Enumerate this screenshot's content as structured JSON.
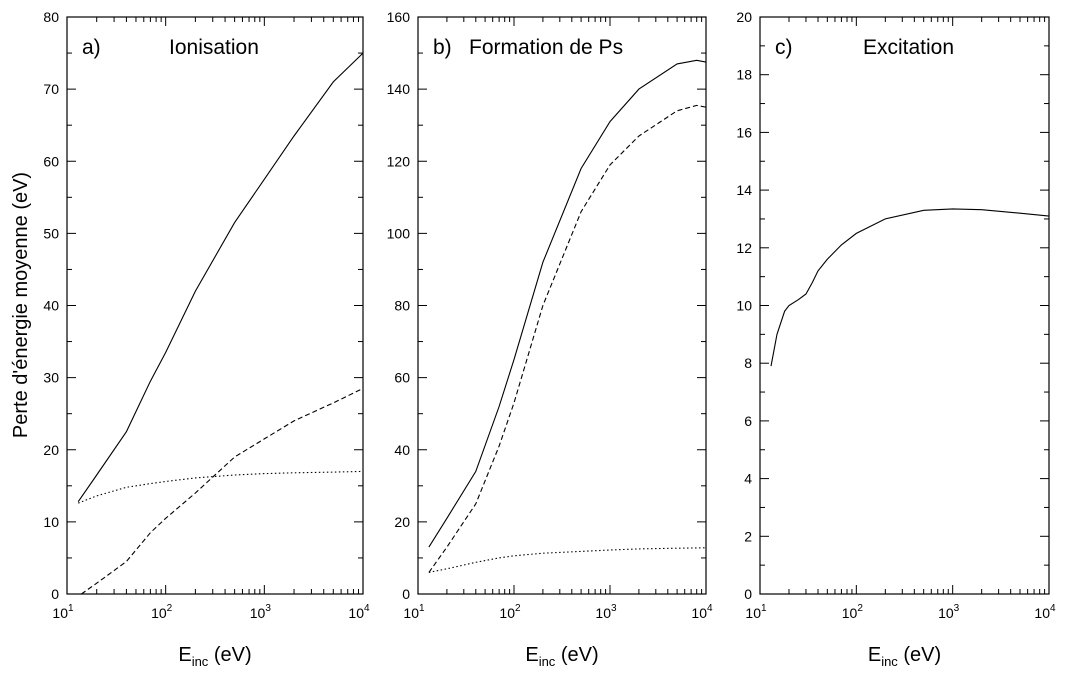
{
  "figure": {
    "ylabel": "Perte d'énergie moyenne (eV)"
  },
  "chart_data": [
    {
      "type": "line",
      "panel_label": "a)",
      "title": "Ionisation",
      "xlabel_main": "E",
      "xlabel_sub": "inc",
      "xlabel_unit": " (eV)",
      "xscale": "log",
      "xlim": [
        10,
        10000
      ],
      "ylim": [
        0,
        80
      ],
      "x_tick_labels": [
        {
          "base": "10",
          "exp": "1"
        },
        {
          "base": "10",
          "exp": "2"
        },
        {
          "base": "10",
          "exp": "3"
        },
        {
          "base": "10",
          "exp": "4"
        }
      ],
      "y_tick_labels": [
        "0",
        "10",
        "20",
        "30",
        "40",
        "50",
        "60",
        "70",
        "80"
      ],
      "grid": false,
      "series": [
        {
          "style": "solid",
          "x": [
            13,
            20,
            40,
            70,
            100,
            200,
            500,
            1000,
            2000,
            5000,
            10000
          ],
          "y": [
            12.8,
            16.5,
            22.5,
            29.5,
            33.5,
            42,
            51.5,
            57.5,
            63.5,
            71,
            75
          ]
        },
        {
          "style": "dashed",
          "x": [
            14,
            20,
            40,
            70,
            100,
            200,
            500,
            1000,
            2000,
            5000,
            10000
          ],
          "y": [
            0,
            1.5,
            4.5,
            8.5,
            10.5,
            14,
            19,
            21.5,
            24,
            26.5,
            28.5
          ]
        },
        {
          "style": "dotted",
          "x": [
            13,
            20,
            40,
            70,
            100,
            200,
            500,
            1000,
            2000,
            5000,
            10000
          ],
          "y": [
            12.6,
            13.6,
            14.8,
            15.3,
            15.6,
            16.1,
            16.5,
            16.7,
            16.8,
            16.9,
            17
          ]
        }
      ]
    },
    {
      "type": "line",
      "panel_label": "b)",
      "title": "Formation de Ps",
      "xlabel_main": "E",
      "xlabel_sub": "inc",
      "xlabel_unit": " (eV)",
      "xscale": "log",
      "xlim": [
        10,
        10000
      ],
      "ylim": [
        0,
        160
      ],
      "x_tick_labels": [
        {
          "base": "10",
          "exp": "1"
        },
        {
          "base": "10",
          "exp": "2"
        },
        {
          "base": "10",
          "exp": "3"
        },
        {
          "base": "10",
          "exp": "4"
        }
      ],
      "y_tick_labels": [
        "0",
        "20",
        "40",
        "60",
        "80",
        "100",
        "120",
        "140",
        "160"
      ],
      "grid": false,
      "series": [
        {
          "style": "solid",
          "x": [
            13,
            20,
            40,
            70,
            100,
            200,
            500,
            1000,
            2000,
            5000,
            8000,
            10000
          ],
          "y": [
            13,
            21,
            34,
            52,
            65,
            92,
            118,
            131,
            140,
            147,
            148,
            147.5
          ]
        },
        {
          "style": "dashed",
          "x": [
            13,
            20,
            40,
            70,
            100,
            200,
            500,
            1000,
            2000,
            5000,
            8000,
            10000
          ],
          "y": [
            6,
            13,
            25,
            41,
            53,
            80,
            106,
            119,
            127,
            134,
            135.5,
            135
          ]
        },
        {
          "style": "dotted",
          "x": [
            13,
            20,
            40,
            70,
            100,
            200,
            500,
            1000,
            2000,
            5000,
            10000
          ],
          "y": [
            6,
            7,
            8.8,
            10,
            10.6,
            11.3,
            11.8,
            12.2,
            12.5,
            12.7,
            12.8
          ]
        }
      ]
    },
    {
      "type": "line",
      "panel_label": "c)",
      "title": "Excitation",
      "xlabel_main": "E",
      "xlabel_sub": "inc",
      "xlabel_unit": " (eV)",
      "xscale": "log",
      "xlim": [
        10,
        10000
      ],
      "ylim": [
        0,
        20
      ],
      "x_tick_labels": [
        {
          "base": "10",
          "exp": "1"
        },
        {
          "base": "10",
          "exp": "2"
        },
        {
          "base": "10",
          "exp": "3"
        },
        {
          "base": "10",
          "exp": "4"
        }
      ],
      "y_tick_labels": [
        "0",
        "2",
        "4",
        "6",
        "8",
        "10",
        "12",
        "14",
        "16",
        "18",
        "20"
      ],
      "grid": false,
      "series": [
        {
          "style": "solid",
          "x": [
            13,
            15,
            18,
            20,
            25,
            30,
            35,
            40,
            50,
            70,
            100,
            200,
            500,
            1000,
            2000,
            5000,
            10000
          ],
          "y": [
            7.9,
            9.0,
            9.8,
            10.0,
            10.2,
            10.4,
            10.8,
            11.2,
            11.6,
            12.1,
            12.5,
            13.0,
            13.3,
            13.35,
            13.32,
            13.2,
            13.1
          ]
        }
      ]
    }
  ]
}
